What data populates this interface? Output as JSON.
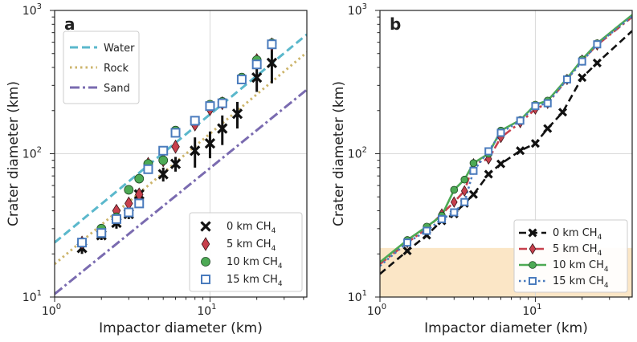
{
  "figure": {
    "panels": [
      "a",
      "b"
    ]
  },
  "chart_data": [
    {
      "panel": "a",
      "type": "scatter",
      "xscale": "log",
      "yscale": "log",
      "xlim": [
        1,
        42
      ],
      "ylim": [
        10,
        1000
      ],
      "xlabel": "Impactor diameter (km)",
      "ylabel": "Crater diameter (km)",
      "xticks": [
        {
          "base": "10",
          "exp": "0",
          "value": 1
        },
        {
          "base": "10",
          "exp": "1",
          "value": 10
        }
      ],
      "yticks": [
        {
          "base": "10",
          "exp": "1",
          "value": 10
        },
        {
          "base": "10",
          "exp": "2",
          "value": 100
        },
        {
          "base": "10",
          "exp": "3",
          "value": 1000
        }
      ],
      "grid": true,
      "reference_lines": [
        {
          "name": "Water",
          "style": "dashed",
          "color": "#5bb8cc",
          "points": [
            [
              1,
              24
            ],
            [
              42,
              680
            ]
          ]
        },
        {
          "name": "Rock",
          "style": "dotted",
          "color": "#cdb56c",
          "points": [
            [
              1,
              17
            ],
            [
              42,
              510
            ]
          ]
        },
        {
          "name": "Sand",
          "style": "dashdot",
          "color": "#7a6bb0",
          "points": [
            [
              1,
              10.5
            ],
            [
              42,
              280
            ]
          ]
        }
      ],
      "legend_lines_position": "top-left",
      "legend_markers_position": "bottom-right",
      "series": [
        {
          "name": "0 km CH",
          "sub": "4",
          "marker": "x",
          "color": "#111111",
          "x": [
            1.5,
            2.0,
            2.5,
            3.0,
            3.5,
            5.0,
            6.0,
            8.0,
            10.0,
            12.0,
            15.0,
            20.0,
            25.0
          ],
          "y": [
            22,
            27,
            33,
            38,
            52,
            72,
            85,
            105,
            118,
            150,
            190,
            340,
            430
          ],
          "err": [
            2,
            2,
            3,
            3,
            5,
            8,
            10,
            25,
            25,
            35,
            40,
            70,
            120
          ]
        },
        {
          "name": "5 km CH",
          "sub": "4",
          "marker": "diamond",
          "color": "#c7404d",
          "x": [
            1.5,
            2.0,
            2.5,
            3.0,
            3.5,
            4.0,
            5.0,
            6.0,
            8.0,
            10.0,
            12.0,
            20.0,
            25.0
          ],
          "y": [
            24,
            29,
            40,
            45,
            52,
            85,
            90,
            112,
            160,
            205,
            225,
            450,
            580
          ],
          "err": []
        },
        {
          "name": "10 km CH",
          "sub": "4",
          "marker": "circle",
          "color": "#4daa55",
          "x": [
            1.5,
            2.0,
            2.5,
            3.0,
            3.5,
            4.0,
            5.0,
            6.0,
            8.0,
            10.0,
            12.0,
            16.0,
            20.0,
            25.0
          ],
          "y": [
            24,
            30,
            36,
            56,
            67,
            85,
            90,
            145,
            170,
            220,
            230,
            340,
            450,
            590
          ],
          "err": []
        },
        {
          "name": "15 km CH",
          "sub": "4",
          "marker": "square",
          "color": "#4a7bbd",
          "x": [
            1.5,
            2.0,
            2.5,
            3.0,
            3.5,
            4.0,
            5.0,
            6.0,
            8.0,
            10.0,
            12.0,
            16.0,
            20.0,
            25.0
          ],
          "y": [
            24,
            28,
            35,
            39,
            45,
            78,
            105,
            140,
            170,
            215,
            225,
            330,
            420,
            580
          ],
          "err": []
        }
      ]
    },
    {
      "panel": "b",
      "type": "line",
      "xscale": "log",
      "yscale": "log",
      "xlim": [
        1,
        42
      ],
      "ylim": [
        10,
        1000
      ],
      "xlabel": "Impactor diameter (km)",
      "ylabel": "Crater diameter (km)",
      "xticks": [
        {
          "base": "10",
          "exp": "0",
          "value": 1
        },
        {
          "base": "10",
          "exp": "1",
          "value": 10
        }
      ],
      "yticks": [
        {
          "base": "10",
          "exp": "1",
          "value": 10
        },
        {
          "base": "10",
          "exp": "2",
          "value": 100
        },
        {
          "base": "10",
          "exp": "3",
          "value": 1000
        }
      ],
      "grid": true,
      "shaded_band": {
        "ymin": 10,
        "ymax": 22,
        "color": "#fbe6c6"
      },
      "legend_position": "bottom-right",
      "series": [
        {
          "name": "0 km CH",
          "sub": "4",
          "marker": "x",
          "color": "#111111",
          "line": "dashed",
          "x": [
            1.0,
            1.5,
            2.0,
            2.5,
            3.0,
            3.5,
            4.0,
            5.0,
            6.0,
            8.0,
            10.0,
            12.0,
            15.0,
            20.0,
            25.0,
            42.0
          ],
          "y": [
            14.5,
            21,
            27,
            34,
            38,
            45,
            52,
            72,
            85,
            105,
            118,
            150,
            195,
            340,
            430,
            720
          ]
        },
        {
          "name": "5 km CH",
          "sub": "4",
          "marker": "diamond",
          "color": "#c7404d",
          "line": "dashdot",
          "x": [
            1.0,
            1.5,
            2.0,
            2.5,
            3.0,
            3.5,
            4.0,
            5.0,
            6.0,
            8.0,
            10.0,
            12.0,
            16.0,
            20.0,
            25.0,
            42.0
          ],
          "y": [
            17,
            24,
            30,
            38,
            46,
            55,
            85,
            92,
            130,
            165,
            205,
            225,
            330,
            450,
            575,
            900
          ]
        },
        {
          "name": "10 km CH",
          "sub": "4",
          "marker": "circle",
          "color": "#4daa55",
          "line": "solid",
          "x": [
            1.0,
            1.5,
            2.0,
            2.5,
            3.0,
            3.5,
            4.0,
            5.0,
            6.0,
            8.0,
            10.0,
            12.0,
            16.0,
            20.0,
            25.0,
            42.0
          ],
          "y": [
            17.5,
            25,
            31,
            37,
            56,
            66,
            86,
            100,
            145,
            172,
            220,
            235,
            335,
            455,
            590,
            930
          ]
        },
        {
          "name": "15 km CH",
          "sub": "4",
          "marker": "square",
          "color": "#4a7bbd",
          "line": "dotted",
          "x": [
            1.0,
            1.5,
            2.0,
            2.5,
            3.0,
            3.5,
            4.0,
            5.0,
            6.0,
            8.0,
            10.0,
            12.0,
            16.0,
            20.0,
            25.0,
            42.0
          ],
          "y": [
            16.5,
            24,
            29,
            35,
            39,
            46,
            76,
            104,
            140,
            170,
            215,
            225,
            330,
            440,
            580,
            910
          ]
        }
      ]
    }
  ]
}
